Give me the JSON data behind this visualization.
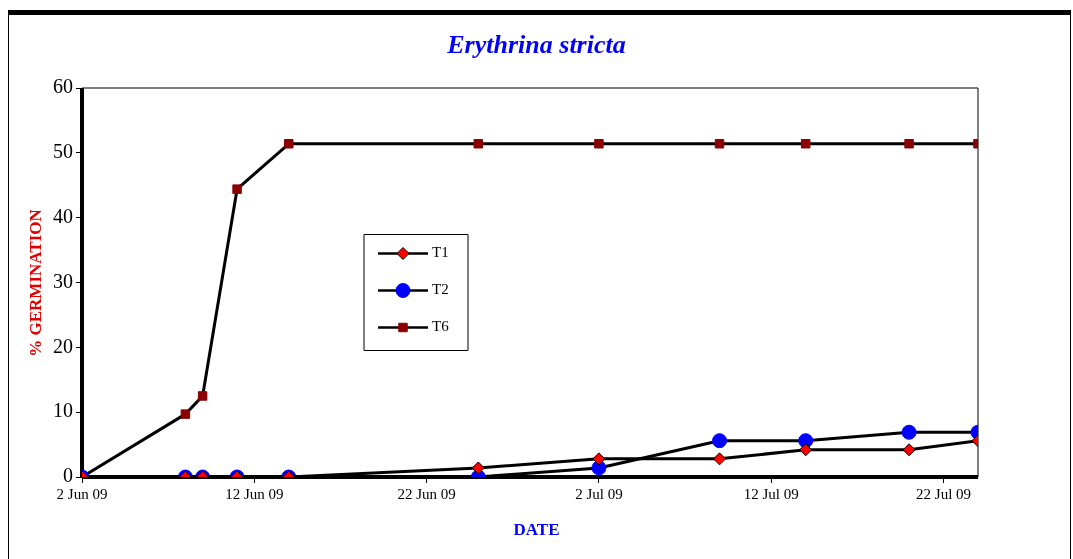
{
  "chart_data": {
    "type": "line",
    "title": "Erythrina stricta",
    "xlabel": "DATE",
    "ylabel": "% GERMINATION",
    "x": [
      "--06-02",
      "--06-08",
      "--06-09",
      "--06-11",
      "--06-14",
      "--06-25",
      "--07-02",
      "--07-09",
      "--07-14",
      "--07-20",
      "--07-24"
    ],
    "series": [
      {
        "name": "T1",
        "color": "#ff0000",
        "marker": "diamond",
        "values": [
          0,
          0,
          0,
          0,
          0,
          1.4,
          2.8,
          2.8,
          4.2,
          4.2,
          5.6
        ]
      },
      {
        "name": "T2",
        "color": "#0000ff",
        "marker": "circle",
        "values": [
          0,
          0,
          0,
          0,
          0,
          0,
          1.4,
          5.6,
          5.6,
          6.9,
          6.9
        ]
      },
      {
        "name": "T6",
        "color": "#8b0000",
        "marker": "square",
        "values": [
          0,
          9.7,
          12.5,
          44.4,
          51.4,
          51.4,
          51.4,
          51.4,
          51.4,
          51.4,
          51.4
        ]
      }
    ],
    "xlim": [
      "--06-02",
      "--07-24"
    ],
    "xticks": [
      {
        "value": "--06-02",
        "label": "2 Jun 09"
      },
      {
        "value": "--06-12",
        "label": "12 Jun 09"
      },
      {
        "value": "--06-22",
        "label": "22 Jun 09"
      },
      {
        "value": "--07-02",
        "label": "2 Jul 09"
      },
      {
        "value": "--07-12",
        "label": "12 Jul 09"
      },
      {
        "value": "--07-22",
        "label": "22 Jul 09"
      }
    ],
    "ylim": [
      0,
      60
    ],
    "yticks": [
      0,
      10,
      20,
      30,
      40,
      50,
      60
    ],
    "grid": false,
    "legend": "center left",
    "line_style": "solid"
  }
}
